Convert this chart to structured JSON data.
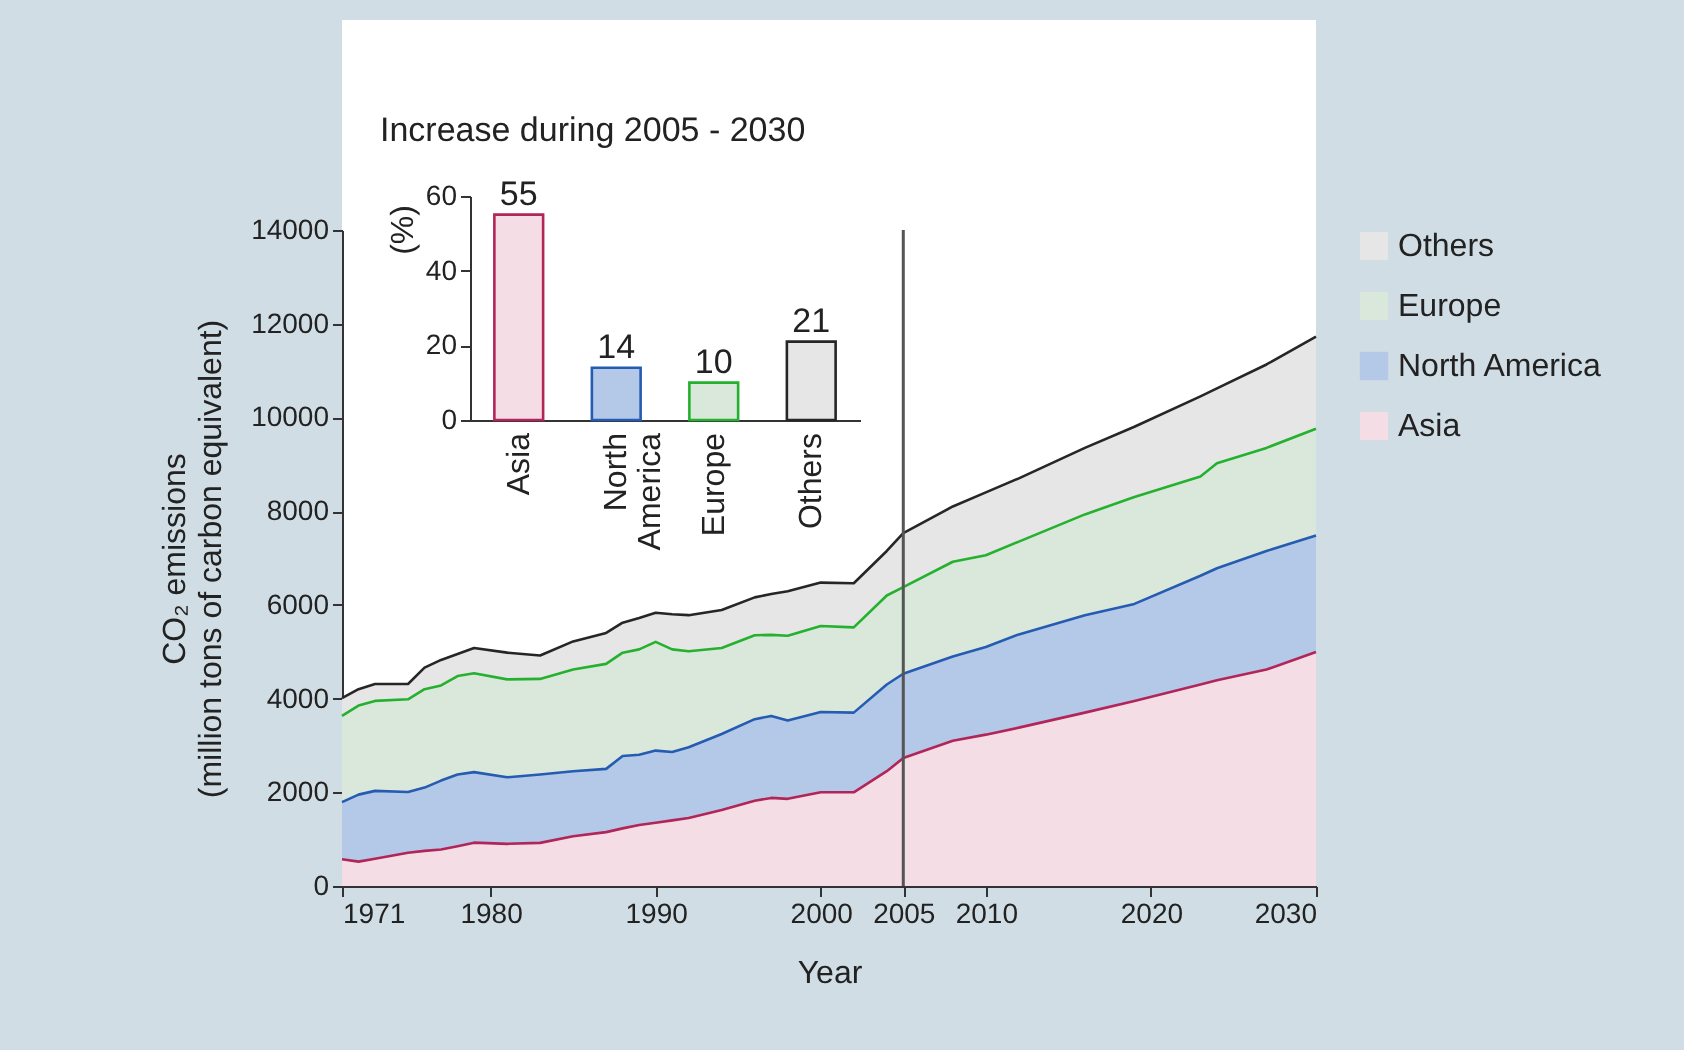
{
  "chart_data": [
    {
      "type": "area",
      "stacked": true,
      "xlabel": "Year",
      "ylabel": "CO₂ emissions\n(million tons of carbon equivalent)",
      "x": [
        1971,
        1972,
        1973,
        1975,
        1976,
        1977,
        1978,
        1979,
        1981,
        1983,
        1985,
        1987,
        1988,
        1989,
        1990,
        1991,
        1992,
        1994,
        1996,
        1997,
        1998,
        2000,
        2002,
        2004,
        2005,
        2008,
        2010,
        2012,
        2016,
        2019,
        2023,
        2024,
        2027,
        2030
      ],
      "series": [
        {
          "name": "Asia",
          "color": "#f5dde6",
          "values": [
            570,
            520,
            580,
            710,
            750,
            780,
            850,
            925,
            900,
            920,
            1060,
            1150,
            1230,
            1300,
            1350,
            1400,
            1450,
            1620,
            1820,
            1880,
            1860,
            2000,
            2000,
            2450,
            2730,
            3100,
            3230,
            3380,
            3700,
            3950,
            4300,
            4390,
            4620,
            4995
          ]
        },
        {
          "name": "North America",
          "color": "#b4c8e8",
          "values": [
            1220,
            1430,
            1450,
            1295,
            1350,
            1470,
            1530,
            1505,
            1420,
            1460,
            1390,
            1350,
            1545,
            1500,
            1540,
            1460,
            1510,
            1625,
            1740,
            1750,
            1670,
            1715,
            1700,
            1850,
            1800,
            1800,
            1870,
            1990,
            2080,
            2070,
            2320,
            2390,
            2530,
            2485
          ]
        },
        {
          "name": "Europe",
          "color": "#d9e8da",
          "values": [
            1840,
            1900,
            1920,
            1980,
            2100,
            2030,
            2100,
            2110,
            2090,
            2040,
            2170,
            2240,
            2205,
            2250,
            2320,
            2190,
            2050,
            1835,
            1790,
            1730,
            1810,
            1835,
            1820,
            1900,
            1850,
            2020,
            1960,
            1980,
            2150,
            2280,
            2120,
            2240,
            2200,
            2280
          ]
        },
        {
          "name": "Others",
          "color": "#e6e6e6",
          "values": [
            380,
            350,
            360,
            325,
            460,
            545,
            470,
            540,
            570,
            500,
            600,
            660,
            640,
            670,
            620,
            750,
            770,
            810,
            810,
            870,
            950,
            925,
            940,
            950,
            1150,
            1180,
            1340,
            1350,
            1420,
            1500,
            1710,
            1600,
            1780,
            1965
          ]
        }
      ],
      "xlim": [
        1971,
        2030
      ],
      "xticks": [
        1971,
        1980,
        1990,
        2000,
        2005,
        2010,
        2020,
        2030
      ],
      "ylim": [
        0,
        14000
      ],
      "yticks": [
        0,
        2000,
        4000,
        6000,
        8000,
        10000,
        12000,
        14000
      ],
      "ref_lines": [
        {
          "axis": "x",
          "value": 2005,
          "color": "#555555"
        }
      ],
      "legend": "right"
    },
    {
      "type": "bar",
      "title": "Increase during 2005 - 2030",
      "ylabel": "(%)",
      "categories": [
        "Asia",
        "North America",
        "Europe",
        "Others"
      ],
      "values": [
        55,
        14,
        10,
        21
      ],
      "colors": [
        "#f5dde6",
        "#b4c8e8",
        "#d9e8da",
        "#e6e6e6"
      ],
      "ylim": [
        0,
        60
      ],
      "yticks": [
        0,
        20,
        40,
        60
      ],
      "data_labels": true
    }
  ]
}
